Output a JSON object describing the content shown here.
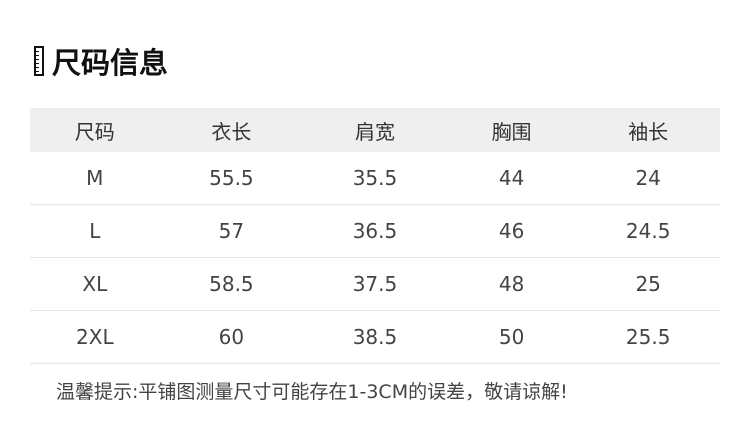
{
  "title": "尺码信息",
  "icons": {
    "title": "ruler-icon"
  },
  "table": {
    "headers": [
      "尺码",
      "衣长",
      "肩宽",
      "胸围",
      "袖长"
    ],
    "rows": [
      [
        "M",
        "55.5",
        "35.5",
        "44",
        "24"
      ],
      [
        "L",
        "57",
        "36.5",
        "46",
        "24.5"
      ],
      [
        "XL",
        "58.5",
        "37.5",
        "48",
        "25"
      ],
      [
        "2XL",
        "60",
        "38.5",
        "50",
        "25.5"
      ]
    ]
  },
  "note": "温馨提示:平铺图测量尺寸可能存在1-3CM的误差，敬请谅解!"
}
